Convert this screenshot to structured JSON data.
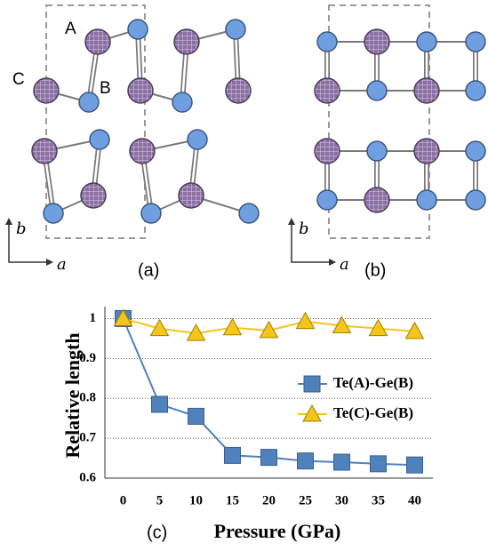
{
  "panel_a": {
    "atom_labels": [
      "A",
      "B",
      "C"
    ],
    "axis_labels": {
      "vertical": "b",
      "horizontal": "a"
    },
    "caption": "(a)"
  },
  "panel_b": {
    "axis_labels": {
      "vertical": "b",
      "horizontal": "a"
    },
    "caption": "(b)"
  },
  "chart_data": {
    "type": "line",
    "caption": "(c)",
    "ylabel": "Relative length",
    "xlabel": "Pressure (GPa)",
    "categories": [
      "0",
      "5",
      "10",
      "15",
      "20",
      "25",
      "30",
      "35",
      "40"
    ],
    "series": [
      {
        "name": "Te(A)-Ge(B)",
        "color": "#4f81bd",
        "marker": "square",
        "values": [
          1.0,
          0.785,
          0.755,
          0.657,
          0.652,
          0.643,
          0.64,
          0.636,
          0.633
        ]
      },
      {
        "name": "Te(C)-Ge(B)",
        "color": "#f5c518",
        "marker": "triangle",
        "values": [
          1.0,
          0.975,
          0.963,
          0.977,
          0.97,
          0.993,
          0.982,
          0.975,
          0.968
        ]
      }
    ],
    "ylim": [
      0.6,
      1.03
    ],
    "yticks": [
      0.6,
      0.7,
      0.8,
      0.9,
      1
    ],
    "grid": true
  }
}
